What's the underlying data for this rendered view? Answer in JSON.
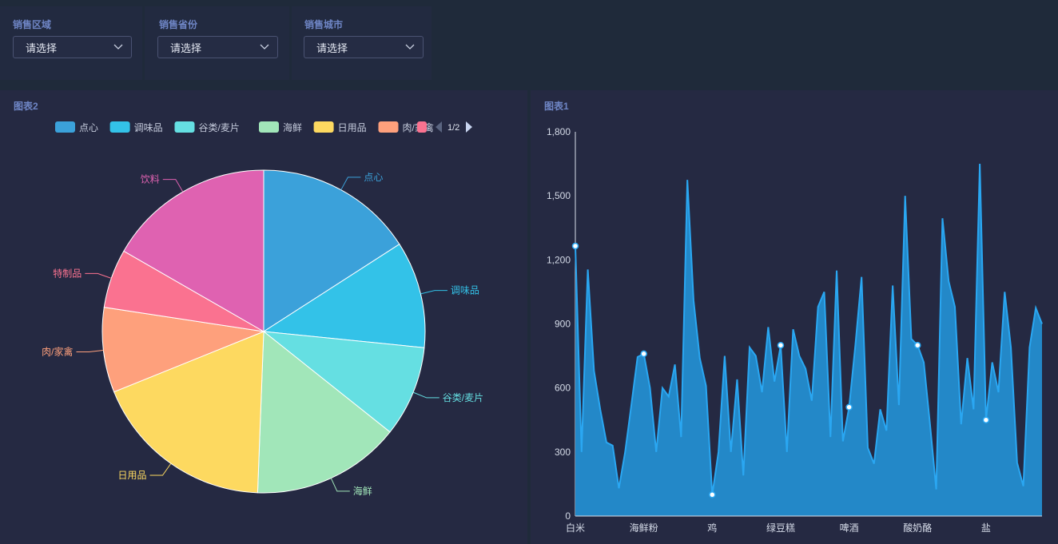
{
  "filters": [
    {
      "label": "销售区域",
      "value": "请选择"
    },
    {
      "label": "销售省份",
      "value": "请选择"
    },
    {
      "label": "销售城市",
      "value": "请选择"
    }
  ],
  "colors": {
    "page_bg": "#1f2a3a",
    "panel_bg": "#252942",
    "title_accent": "#6f86c6",
    "area_fill": "#2388c8",
    "area_line": "#2aa7f2"
  },
  "pie_panel": {
    "title": "图表2",
    "legend_page": "1/2"
  },
  "line_panel": {
    "title": "图表1"
  },
  "chart_data": [
    {
      "type": "pie",
      "legend_visible": [
        "点心",
        "调味品",
        "谷类/麦片",
        "海鲜",
        "日用品",
        "肉/家禽"
      ],
      "slices": [
        {
          "name": "点心",
          "value": 15.9,
          "color": "#3ba1da"
        },
        {
          "name": "调味品",
          "value": 10.7,
          "color": "#33c2e8"
        },
        {
          "name": "谷类/麦片",
          "value": 9.1,
          "color": "#65dfe2"
        },
        {
          "name": "海鲜",
          "value": 14.9,
          "color": "#a1e6b9"
        },
        {
          "name": "日用品",
          "value": 18.3,
          "color": "#fdd960"
        },
        {
          "name": "肉/家禽",
          "value": 8.5,
          "color": "#fea07c"
        },
        {
          "name": "特制品",
          "value": 5.9,
          "color": "#fa7290"
        },
        {
          "name": "饮料",
          "value": 16.7,
          "color": "#df62b1"
        }
      ]
    },
    {
      "type": "area",
      "ylim": [
        0,
        1800
      ],
      "yticks": [
        "0",
        "300",
        "600",
        "900",
        "1,200",
        "1,500",
        "1,800"
      ],
      "ytick_values": [
        0,
        300,
        600,
        900,
        1200,
        1500,
        1800
      ],
      "xtick_labels": [
        "白米",
        "海鲜粉",
        "鸡",
        "绿豆糕",
        "啤酒",
        "酸奶酪",
        "盐"
      ],
      "xtick_positions": [
        0,
        11,
        22,
        33,
        44,
        55,
        66
      ],
      "values": [
        1265,
        300,
        1155,
        680,
        500,
        345,
        330,
        130,
        300,
        520,
        745,
        760,
        600,
        300,
        600,
        560,
        710,
        370,
        1575,
        1010,
        740,
        610,
        100,
        300,
        750,
        300,
        640,
        190,
        790,
        750,
        580,
        885,
        630,
        800,
        300,
        875,
        750,
        690,
        540,
        980,
        1050,
        370,
        1150,
        350,
        510,
        800,
        1120,
        320,
        245,
        500,
        400,
        1080,
        520,
        1500,
        830,
        800,
        720,
        430,
        125,
        1395,
        1100,
        980,
        430,
        740,
        500,
        1650,
        450,
        720,
        580,
        1050,
        790,
        250,
        140,
        790,
        975,
        900
      ],
      "markers": [
        0,
        11,
        22,
        33,
        44,
        55,
        66
      ]
    }
  ]
}
